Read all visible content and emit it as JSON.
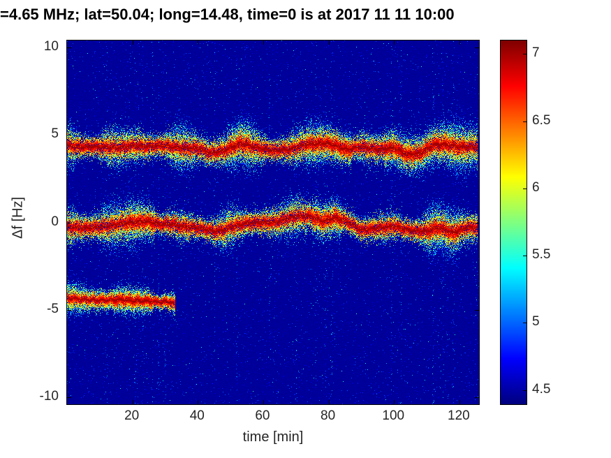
{
  "figure": {
    "background": "#ffffff",
    "title_color": "#000000",
    "axis_text_color": "#262626",
    "deep_blue_background": "#00008f"
  },
  "chart_data": {
    "type": "heatmap",
    "subtype": "doppler-spectrogram",
    "title": "=4.65 MHz;  lat=50.04; long=14.48, time=0 is at 2017 11 11 10:00",
    "xlabel": "time [min]",
    "ylabel": "Δf [Hz]",
    "xlim": [
      0,
      126
    ],
    "ylim": [
      -10.4,
      10.4
    ],
    "xticks": [
      20,
      40,
      60,
      80,
      100,
      120
    ],
    "yticks": [
      10,
      5,
      0,
      -5,
      -10
    ],
    "grid": false,
    "legend": false,
    "colormap": "jet",
    "colorbar": {
      "position": "right",
      "min": 4.4,
      "max": 7.1,
      "ticks": [
        7,
        6.5,
        6,
        5.5,
        5,
        4.5
      ]
    },
    "background_value": 4.45,
    "traces": [
      {
        "name": "upper-doppler-trace",
        "t": [
          0,
          5,
          10,
          15,
          20,
          25,
          30,
          35,
          40,
          44,
          48,
          53,
          58,
          63,
          68,
          73,
          78,
          82,
          86,
          90,
          95,
          100,
          104,
          108,
          112,
          116,
          120,
          125.5
        ],
        "f": [
          4.4,
          4.35,
          4.3,
          4.3,
          4.35,
          4.3,
          4.4,
          4.3,
          4.2,
          3.95,
          4.1,
          4.5,
          4.3,
          4.15,
          4.2,
          4.45,
          4.5,
          4.4,
          4.2,
          4.35,
          4.2,
          4.3,
          3.9,
          4.0,
          4.4,
          4.45,
          4.3,
          4.3
        ],
        "peak": 7.05,
        "spread": 0.45,
        "hot_intervals": [
          [
            49,
            56
          ],
          [
            73,
            87
          ],
          [
            97,
            122
          ]
        ]
      },
      {
        "name": "middle-doppler-trace",
        "t": [
          0,
          5,
          10,
          15,
          20,
          25,
          30,
          35,
          40,
          45,
          50,
          55,
          60,
          65,
          70,
          75,
          78,
          82,
          86,
          90,
          95,
          100,
          105,
          110,
          114,
          118,
          122,
          125.5
        ],
        "f": [
          -0.2,
          -0.3,
          -0.25,
          -0.15,
          0.0,
          0.05,
          -0.1,
          -0.2,
          -0.3,
          -0.55,
          -0.3,
          -0.1,
          -0.05,
          0.1,
          0.3,
          0.35,
          0.1,
          0.3,
          0.0,
          -0.45,
          -0.3,
          -0.25,
          -0.4,
          -0.5,
          -0.3,
          -0.6,
          -0.3,
          -0.3
        ],
        "peak": 7.05,
        "spread": 0.45,
        "hot_intervals": [
          [
            18,
            27
          ],
          [
            75,
            84
          ],
          [
            110,
            120
          ]
        ]
      },
      {
        "name": "lower-doppler-trace",
        "t": [
          0,
          4,
          8,
          12,
          16,
          20,
          24,
          28,
          31,
          33
        ],
        "f": [
          -4.3,
          -4.45,
          -4.4,
          -4.5,
          -4.4,
          -4.45,
          -4.5,
          -4.5,
          -4.55,
          -4.7
        ],
        "peak": 7.05,
        "spread": 0.3,
        "hot_intervals": [
          [
            14,
            26
          ]
        ]
      }
    ],
    "noise_streak_times": [
      12,
      19,
      21,
      23,
      26,
      28,
      30,
      45,
      52,
      62,
      70,
      76,
      79,
      81,
      99,
      102,
      112,
      115,
      118
    ]
  }
}
